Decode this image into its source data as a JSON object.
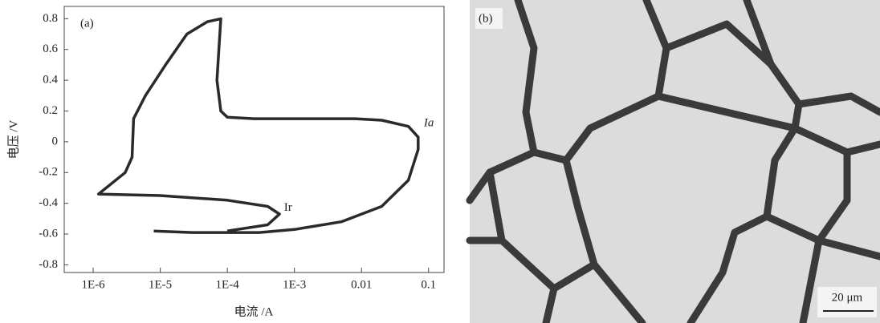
{
  "chart_data": {
    "type": "line",
    "panel_label": "(a)",
    "xlabel": "电流 /A",
    "ylabel": "电压 /V",
    "log_x": true,
    "color": "#2a2a2a",
    "xlim": [
      3.7e-07,
      0.17
    ],
    "ylim": [
      -0.85,
      0.88
    ],
    "xticks": [
      {
        "value": 1e-06,
        "label": "1E-6"
      },
      {
        "value": 1e-05,
        "label": "1E-5"
      },
      {
        "value": 0.0001,
        "label": "1E-4"
      },
      {
        "value": 0.001,
        "label": "1E-3"
      },
      0.01,
      0.1
    ],
    "yticks": [
      0.8,
      0.6,
      0.4,
      0.2,
      0,
      -0.2,
      -0.4,
      -0.6,
      -0.8
    ],
    "x": [
      8e-06,
      3e-05,
      0.0003,
      0.001,
      0.005,
      0.02,
      0.05,
      0.07,
      0.07,
      0.05,
      0.02,
      0.008,
      0.001,
      0.00025,
      0.0001,
      8e-05,
      7e-05,
      8e-05,
      5e-05,
      2.5e-05,
      1.2e-05,
      6e-06,
      4e-06,
      3.8e-06,
      3e-06,
      1.2e-06,
      1e-05,
      0.0001,
      0.0004,
      0.0006,
      0.0004,
      0.0001
    ],
    "values": [
      -0.58,
      -0.59,
      -0.59,
      -0.57,
      -0.52,
      -0.42,
      -0.25,
      -0.05,
      0.03,
      0.1,
      0.14,
      0.15,
      0.15,
      0.15,
      0.16,
      0.2,
      0.4,
      0.8,
      0.78,
      0.7,
      0.5,
      0.3,
      0.15,
      -0.1,
      -0.2,
      -0.34,
      -0.35,
      -0.38,
      -0.42,
      -0.47,
      -0.54,
      -0.58
    ],
    "annotations": [
      "Ia",
      "Ir"
    ]
  },
  "micrograph": {
    "label": "(b)",
    "scale_bar": "20 μm"
  }
}
